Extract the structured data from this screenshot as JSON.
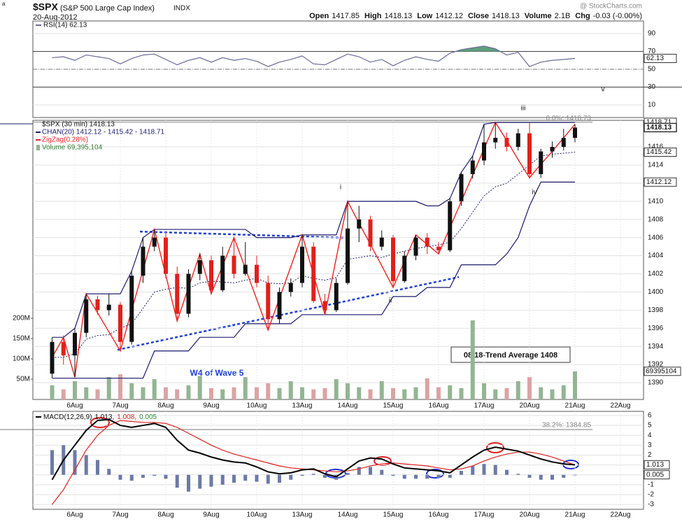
{
  "header": {
    "corner": "a",
    "symbol": "$SPX",
    "name": "(S&P 500 Large Cap Index)",
    "exchange": "INDX",
    "date": "20-Aug-2012",
    "credit": "@ StockCharts.com",
    "quote": [
      {
        "label": "Open",
        "value": "1417.85"
      },
      {
        "label": "High",
        "value": "1418.13"
      },
      {
        "label": "Low",
        "value": "1412.12"
      },
      {
        "label": "Close",
        "value": "1418.13"
      },
      {
        "label": "Volume",
        "value": "2.1B"
      },
      {
        "label": "Chg",
        "value": "-0.03 (-0.00%)"
      }
    ]
  },
  "chart_data": [
    {
      "type": "line",
      "legend": "RSI(14) 62.13",
      "series": [
        {
          "name": "RSI(14)",
          "color": "#6a6a96",
          "fill_color": "#5f9f7f",
          "values": [
            63,
            64,
            60,
            66,
            64,
            62,
            56,
            62,
            66,
            67,
            61,
            55,
            60,
            63,
            58,
            63,
            60,
            62,
            59,
            53,
            58,
            61,
            65,
            56,
            55,
            61,
            67,
            64,
            58,
            61,
            54,
            60,
            64,
            61,
            59,
            68,
            72,
            74,
            76,
            73,
            66,
            69,
            53,
            58,
            60,
            61,
            62.13,
            null,
            null,
            null,
            null,
            null
          ]
        }
      ],
      "ylim": [
        -4.1,
        104.1
      ],
      "yticks": [
        10,
        30,
        50,
        70,
        90
      ],
      "reference_lines": [
        70,
        50,
        30
      ],
      "last_value": 62.13,
      "grid": true
    },
    {
      "type": "candlestick",
      "title": "$SPX (30 min) 1418.13",
      "categories": [
        null,
        null,
        "6Aug",
        null,
        null,
        null,
        "7Aug",
        null,
        null,
        null,
        "8Aug",
        null,
        null,
        null,
        "9Aug",
        null,
        null,
        null,
        "10Aug",
        null,
        null,
        null,
        "13Aug",
        null,
        null,
        null,
        "14Aug",
        null,
        null,
        null,
        "15Aug",
        null,
        null,
        null,
        "16Aug",
        null,
        null,
        null,
        "17Aug",
        null,
        null,
        null,
        "20Aug",
        null,
        null,
        null,
        "21Aug",
        null,
        null,
        null,
        "22Aug",
        null
      ],
      "open": [
        1391,
        1394.5,
        1393,
        1395.5,
        1399.2,
        1398,
        1398.6,
        1394.5,
        1401.8,
        1405,
        1406,
        1402,
        1397.6,
        1402,
        1403.5,
        1400.2,
        1404,
        1402,
        1403,
        1401,
        1397,
        1400,
        1401,
        1405,
        1399,
        1398,
        1401,
        1407,
        1408,
        1405,
        1406,
        1401.2,
        1404,
        1406,
        1405,
        1404.6,
        1410,
        1413,
        1414.5,
        1416.5,
        1417,
        1416,
        1417.5,
        1413,
        1415.5,
        1416,
        1417,
        null,
        null,
        null,
        null,
        null
      ],
      "high": [
        1395,
        1395.2,
        1396,
        1399.8,
        1399.6,
        1399.8,
        1398.9,
        1402.3,
        1406,
        1406.9,
        1406.5,
        1402.8,
        1402.5,
        1404.2,
        1404,
        1405,
        1406,
        1405.5,
        1404,
        1401.8,
        1400.5,
        1401.5,
        1406.3,
        1405.5,
        1399.8,
        1401.5,
        1410,
        1409.5,
        1408.4,
        1406.8,
        1406.3,
        1404.5,
        1406.3,
        1406.5,
        1405.5,
        1410.3,
        1413.2,
        1415,
        1418.5,
        1418.7,
        1417.6,
        1418,
        1418.7,
        1415.8,
        1416.6,
        1418,
        1418.5,
        null,
        null,
        null,
        null,
        null
      ],
      "low": [
        1390.5,
        1392,
        1390.6,
        1395,
        1397.5,
        1397.4,
        1393.5,
        1394.2,
        1401,
        1404.5,
        1401.5,
        1396.8,
        1397.2,
        1401.3,
        1399.8,
        1400,
        1401.5,
        1401.8,
        1400.5,
        1395.8,
        1396.5,
        1399.5,
        1400.5,
        1398.8,
        1397.5,
        1397.8,
        1400.8,
        1405.5,
        1404.5,
        1404.6,
        1400.5,
        1401,
        1403.5,
        1404.2,
        1404.2,
        1404.4,
        1409.5,
        1412.5,
        1414,
        1415.8,
        1415.5,
        1415.6,
        1412.5,
        1412.6,
        1414.8,
        1415.6,
        1416.5,
        null,
        null,
        null,
        null,
        null
      ],
      "close": [
        1394.5,
        1393,
        1395.5,
        1399.2,
        1398,
        1398.6,
        1394.5,
        1401.8,
        1405,
        1406,
        1402,
        1397.6,
        1402,
        1403.5,
        1400.2,
        1404,
        1402,
        1403,
        1401,
        1397,
        1400,
        1401,
        1405,
        1399,
        1398,
        1401,
        1407,
        1408,
        1405,
        1406,
        1401.2,
        1404,
        1406,
        1405,
        1404.6,
        1410,
        1413,
        1414.5,
        1416.5,
        1417,
        1416,
        1417.5,
        1413,
        1415.5,
        1416,
        1417,
        1418.13,
        null,
        null,
        null,
        null,
        null
      ],
      "up_color": "#111111",
      "down_color": "#e0201c",
      "ylim": [
        1388.15,
        1418.93
      ],
      "yticks": [
        1390,
        1392,
        1394,
        1396,
        1398,
        1400,
        1402,
        1404,
        1406,
        1408,
        1410,
        1412,
        1414,
        1416
      ],
      "grid": true,
      "channel": {
        "name": "CHAN(20) 1412.12 - 1415.42 - 1418.71",
        "color": "#1c1c6e",
        "upper": [
          1395,
          1395,
          1396,
          1399.8,
          1399.8,
          1399.8,
          1399.8,
          1402.3,
          1406,
          1406.9,
          1406.9,
          1406.9,
          1406.9,
          1406.9,
          1406.9,
          1406.9,
          1406.9,
          1406.9,
          1406,
          1406,
          1406,
          1406,
          1406.3,
          1406.3,
          1406.3,
          1406.3,
          1410,
          1410,
          1410,
          1410,
          1410,
          1410,
          1410,
          1409.5,
          1409.5,
          1410.3,
          1413.2,
          1415,
          1418.5,
          1418.7,
          1418.7,
          1418.7,
          1418.7,
          1418.7,
          1418.7,
          1418.7,
          1418.71,
          null,
          null,
          null,
          null,
          null
        ],
        "middle": [
          1392.8,
          1392.8,
          1393.2,
          1394.8,
          1395.2,
          1395.3,
          1396,
          1396.5,
          1398.2,
          1400,
          1400.3,
          1400.5,
          1400.4,
          1401,
          1401.2,
          1401.1,
          1401,
          1401.3,
          1401.5,
          1401,
          1400.9,
          1401,
          1401.8,
          1401.5,
          1401.3,
          1401.6,
          1403.6,
          1403.8,
          1404,
          1403.8,
          1404.2,
          1404.5,
          1404.8,
          1405,
          1405.2,
          1405.5,
          1407,
          1408.8,
          1410.6,
          1411.6,
          1412,
          1413,
          1414,
          1415,
          1415.2,
          1415.3,
          1415.42,
          null,
          null,
          null,
          null,
          null
        ],
        "lower": [
          1390.5,
          1390.5,
          1390.5,
          1390.5,
          1390.5,
          1390.5,
          1390.5,
          1390.5,
          1390.5,
          1393.5,
          1393.5,
          1393.5,
          1393.5,
          1395,
          1395,
          1395,
          1395,
          1396.5,
          1396.5,
          1396.5,
          1396.5,
          1396.5,
          1397.5,
          1397.5,
          1397.5,
          1397.5,
          1397.5,
          1397.5,
          1397.5,
          1397.5,
          1399.5,
          1399.5,
          1399.5,
          1400.5,
          1400.5,
          1400.5,
          1403,
          1403,
          1403,
          1403,
          1404.2,
          1406,
          1409.5,
          1412.12,
          1412.12,
          1412.12,
          1412.12,
          null,
          null,
          null,
          null,
          null
        ]
      },
      "zigzag": {
        "name": "ZigZag(0.28%)",
        "color": "#ee2222",
        "values": [
          1392.8,
          1395,
          1390.6,
          1399.8,
          1397.7,
          1395.6,
          1393.5,
          1398,
          1402.4,
          1406.9,
          1401.85,
          1396.8,
          1400.5,
          1404.2,
          1399.8,
          1402.9,
          1406,
          1402.6,
          1399.2,
          1395.8,
          1399.3,
          1402.8,
          1406.3,
          1401.9,
          1397.5,
          1403.75,
          1410,
          1407.6,
          1405.25,
          1402.9,
          1400.5,
          1403.4,
          1406.3,
          1405.25,
          1404.2,
          1407.1,
          1410,
          1412.9,
          1415.8,
          1418.7,
          1416.7,
          1414.6,
          1412.6,
          1414.1,
          1415.5,
          1417,
          1418.5,
          null,
          null,
          null,
          null,
          null
        ]
      },
      "volume": {
        "name": "Volume 69,395,104",
        "color": "#2e7d32",
        "up_color": "#93b593",
        "down_color": "#dca3a3",
        "values": [
          35000000,
          25000000,
          45000000,
          30000000,
          25000000,
          55000000,
          62000000,
          40000000,
          30000000,
          50000000,
          30000000,
          25000000,
          35000000,
          58000000,
          28000000,
          25000000,
          30000000,
          55000000,
          30000000,
          40000000,
          28000000,
          45000000,
          30000000,
          25000000,
          28000000,
          50000000,
          40000000,
          30000000,
          25000000,
          45000000,
          28000000,
          25000000,
          30000000,
          52000000,
          30000000,
          35000000,
          28000000,
          195000000,
          40000000,
          25000000,
          28000000,
          45000000,
          55000000,
          30000000,
          25000000,
          35000000,
          69395104,
          null,
          null,
          null,
          null,
          null
        ],
        "ylim": [
          0,
          688000000
        ],
        "yticks": [
          {
            "value": 50000000,
            "label": "50M"
          },
          {
            "value": 100000000,
            "label": "100M"
          },
          {
            "value": 150000000,
            "label": "150M"
          },
          {
            "value": 200000000,
            "label": "200M"
          }
        ],
        "last_value": 69395104
      },
      "price_tags": [
        1418.71,
        1418.13,
        1415.42,
        1412.12
      ],
      "fib": {
        "value": 1418.73,
        "label": "0.0%: 1418.73"
      },
      "annotations": [
        "iii",
        "v",
        "i",
        "ii",
        "iv"
      ],
      "trend_box": "08/18-Trend Average 1408",
      "wave_label": "W4 of Wave 5"
    },
    {
      "type": "macd",
      "legend": "MACD(12,26,9)",
      "legend_values": [
        "1.013,",
        "1.008,",
        "0.005"
      ],
      "series": [
        {
          "name": "MACD",
          "color": "#000000",
          "values": [
            -0.5,
            1.5,
            3,
            4.5,
            5.5,
            5.6,
            5,
            4.8,
            5,
            5.2,
            4.8,
            3.5,
            2.5,
            2.2,
            1.8,
            1.5,
            1.3,
            1.2,
            0.8,
            0.3,
            0.1,
            0.2,
            0.5,
            0.6,
            0.1,
            -0.2,
            0.6,
            1.4,
            1.7,
            1.6,
            1.1,
            0.7,
            0.6,
            0.5,
            0.4,
            0.2,
            1.0,
            1.8,
            2.5,
            2.8,
            2.6,
            2.4,
            2.0,
            1.6,
            1.3,
            1.1,
            1.013,
            null,
            null,
            null,
            null,
            null
          ]
        },
        {
          "name": "Signal",
          "color": "#e02020",
          "values": [
            -3,
            -1.5,
            0.5,
            2.5,
            4,
            5,
            5.5,
            5.4,
            5.3,
            5.3,
            5.2,
            4.8,
            4.2,
            3.6,
            3.0,
            2.5,
            2.1,
            1.8,
            1.5,
            1.2,
            0.9,
            0.7,
            0.6,
            0.5,
            0.4,
            0.3,
            0.4,
            0.6,
            0.9,
            1.1,
            1.2,
            1.1,
            1.0,
            0.9,
            0.7,
            0.5,
            0.6,
            0.9,
            1.4,
            1.8,
            2.1,
            2.3,
            2.3,
            2.1,
            1.8,
            1.4,
            1.008,
            null,
            null,
            null,
            null,
            null
          ]
        },
        {
          "name": "Histogram",
          "color": "#6c7aa6",
          "values": [
            2.5,
            3,
            2.5,
            2,
            1.5,
            0.6,
            -0.5,
            -0.6,
            -0.3,
            -0.1,
            -0.4,
            -1.3,
            -1.7,
            -1.4,
            -1.2,
            -1,
            -0.8,
            -0.6,
            -0.7,
            -0.9,
            -0.8,
            -0.5,
            -0.1,
            0.1,
            -0.3,
            -0.5,
            0.2,
            0.8,
            0.8,
            0.5,
            -0.1,
            -0.4,
            -0.4,
            -0.4,
            -0.3,
            -0.3,
            0.4,
            0.9,
            1.1,
            1.0,
            0.5,
            0.1,
            -0.3,
            -0.5,
            -0.5,
            -0.3,
            0.005,
            null,
            null,
            null,
            null,
            null
          ]
        }
      ],
      "ylim": [
        -3.49,
        6.42
      ],
      "yticks": [
        -3,
        -2,
        -1,
        0,
        1,
        2,
        3,
        4,
        5,
        6
      ],
      "grid": true,
      "tags": [
        1.013,
        0.005
      ],
      "fib_label": "38.2%: 1384.85"
    }
  ]
}
